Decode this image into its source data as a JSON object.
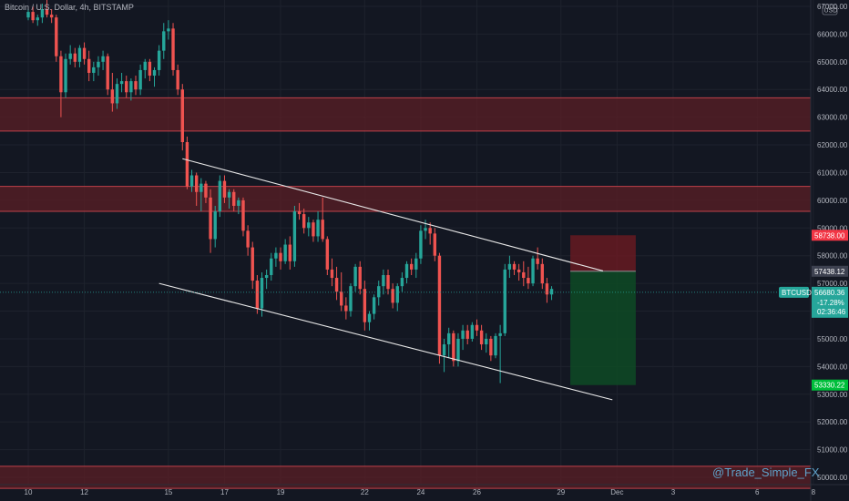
{
  "chart_data": {
    "type": "candlestick",
    "title": "Bitcoin / U.S. Dollar, 4h, BITSTAMP",
    "currency_badge": "USD",
    "symbol": "BTCUSD",
    "watermark": "@Trade_Simple_FX",
    "y_range": [
      49700,
      67300
    ],
    "y_ticks": [
      50000,
      51000,
      52000,
      53000,
      54000,
      55000,
      56000,
      57000,
      58000,
      59000,
      60000,
      61000,
      62000,
      63000,
      64000,
      65000,
      66000,
      67000
    ],
    "x_ticks": [
      {
        "label": "10",
        "x": 0
      },
      {
        "label": "12",
        "x": 12
      },
      {
        "label": "15",
        "x": 30
      },
      {
        "label": "17",
        "x": 42
      },
      {
        "label": "19",
        "x": 54
      },
      {
        "label": "22",
        "x": 72
      },
      {
        "label": "24",
        "x": 84
      },
      {
        "label": "26",
        "x": 96
      },
      {
        "label": "29",
        "x": 114
      },
      {
        "label": "Dec",
        "x": 126
      },
      {
        "label": "3",
        "x": 138
      },
      {
        "label": "6",
        "x": 156
      },
      {
        "label": "8",
        "x": 168
      }
    ],
    "candles": [
      [
        66600,
        66900,
        66500,
        66800
      ],
      [
        66800,
        67000,
        66400,
        66500
      ],
      [
        66500,
        66700,
        66300,
        66600
      ],
      [
        66600,
        67100,
        66400,
        66900
      ],
      [
        66900,
        67300,
        66600,
        66700
      ],
      [
        66700,
        66900,
        66400,
        66600
      ],
      [
        66600,
        66700,
        65000,
        65200
      ],
      [
        65200,
        65400,
        63000,
        63900
      ],
      [
        63900,
        65300,
        63700,
        65100
      ],
      [
        65100,
        65600,
        64900,
        65300
      ],
      [
        65300,
        65500,
        64800,
        65000
      ],
      [
        65000,
        65600,
        64800,
        65500
      ],
      [
        65500,
        65700,
        64900,
        65100
      ],
      [
        65100,
        65400,
        64300,
        64600
      ],
      [
        64600,
        65000,
        64300,
        64800
      ],
      [
        64800,
        65200,
        64500,
        65000
      ],
      [
        65000,
        65400,
        64700,
        65200
      ],
      [
        65200,
        65300,
        63800,
        64000
      ],
      [
        64000,
        64600,
        63200,
        63500
      ],
      [
        63500,
        64400,
        63300,
        64200
      ],
      [
        64200,
        64600,
        63900,
        64300
      ],
      [
        64300,
        64500,
        63700,
        63900
      ],
      [
        63900,
        64400,
        63600,
        64300
      ],
      [
        64300,
        64500,
        63800,
        64000
      ],
      [
        64000,
        64900,
        63800,
        64700
      ],
      [
        64700,
        65100,
        64400,
        65000
      ],
      [
        65000,
        65100,
        64300,
        64500
      ],
      [
        64500,
        64800,
        64100,
        64700
      ],
      [
        64700,
        65600,
        64500,
        65400
      ],
      [
        65400,
        66400,
        65100,
        66100
      ],
      [
        66100,
        66500,
        65800,
        66200
      ],
      [
        66200,
        66400,
        64500,
        64700
      ],
      [
        64700,
        64900,
        63800,
        64000
      ],
      [
        64000,
        64200,
        61800,
        62100
      ],
      [
        62100,
        62300,
        60400,
        60500
      ],
      [
        60500,
        61100,
        60300,
        60900
      ],
      [
        60900,
        61000,
        59800,
        60300
      ],
      [
        60300,
        60800,
        59600,
        60600
      ],
      [
        60600,
        60700,
        59900,
        60100
      ],
      [
        60100,
        60400,
        58100,
        58600
      ],
      [
        58600,
        59800,
        58300,
        59600
      ],
      [
        59600,
        60900,
        59400,
        60700
      ],
      [
        60700,
        60900,
        59900,
        60100
      ],
      [
        60100,
        60400,
        59700,
        60300
      ],
      [
        60300,
        60400,
        59600,
        59800
      ],
      [
        59800,
        60100,
        59500,
        60000
      ],
      [
        60000,
        60100,
        58700,
        58900
      ],
      [
        58900,
        59100,
        58000,
        58300
      ],
      [
        58300,
        58500,
        56800,
        57100
      ],
      [
        57100,
        57300,
        55900,
        56100
      ],
      [
        56100,
        57400,
        55800,
        57200
      ],
      [
        57200,
        57500,
        56800,
        57300
      ],
      [
        57300,
        58100,
        57100,
        57900
      ],
      [
        57900,
        58300,
        57600,
        58100
      ],
      [
        58100,
        58300,
        57500,
        57800
      ],
      [
        57800,
        58600,
        57700,
        58400
      ],
      [
        58400,
        58700,
        57500,
        57800
      ],
      [
        57800,
        59800,
        57600,
        59600
      ],
      [
        59600,
        59900,
        59300,
        59500
      ],
      [
        59500,
        59700,
        58800,
        59000
      ],
      [
        59000,
        59400,
        58700,
        59200
      ],
      [
        59200,
        59300,
        58500,
        58700
      ],
      [
        58700,
        59600,
        58500,
        59300
      ],
      [
        59300,
        60100,
        58500,
        58600
      ],
      [
        58600,
        58700,
        57300,
        57500
      ],
      [
        57500,
        57900,
        56900,
        57200
      ],
      [
        57200,
        57600,
        56400,
        56700
      ],
      [
        56700,
        57400,
        56000,
        56200
      ],
      [
        56200,
        56500,
        55700,
        56000
      ],
      [
        56000,
        57000,
        55800,
        56900
      ],
      [
        56900,
        57700,
        56700,
        57600
      ],
      [
        57600,
        57800,
        56600,
        56800
      ],
      [
        56800,
        57100,
        55300,
        55600
      ],
      [
        55600,
        56000,
        55300,
        55900
      ],
      [
        55900,
        56600,
        55700,
        56500
      ],
      [
        56500,
        57100,
        56200,
        56900
      ],
      [
        56900,
        57500,
        56600,
        57300
      ],
      [
        57300,
        57500,
        56600,
        56800
      ],
      [
        56800,
        57000,
        56100,
        56300
      ],
      [
        56300,
        57000,
        56000,
        56900
      ],
      [
        56900,
        57400,
        56700,
        57200
      ],
      [
        57200,
        57800,
        57000,
        57700
      ],
      [
        57700,
        57900,
        57300,
        57500
      ],
      [
        57500,
        58100,
        57200,
        57900
      ],
      [
        57900,
        59100,
        57700,
        58900
      ],
      [
        58900,
        59300,
        58600,
        59000
      ],
      [
        59000,
        59200,
        58400,
        58800
      ],
      [
        58800,
        59000,
        57800,
        58000
      ],
      [
        58000,
        58100,
        54100,
        54400
      ],
      [
        54400,
        55000,
        53800,
        54800
      ],
      [
        54800,
        55400,
        54300,
        55200
      ],
      [
        55200,
        55300,
        54000,
        54200
      ],
      [
        54200,
        55200,
        54000,
        55000
      ],
      [
        55000,
        55500,
        54600,
        55300
      ],
      [
        55300,
        55500,
        54800,
        55000
      ],
      [
        55000,
        55600,
        54900,
        55500
      ],
      [
        55500,
        55700,
        55100,
        55300
      ],
      [
        55300,
        55500,
        54600,
        54800
      ],
      [
        54800,
        55200,
        54500,
        55000
      ],
      [
        55000,
        55100,
        54200,
        54400
      ],
      [
        54400,
        55200,
        54300,
        55100
      ],
      [
        55100,
        55500,
        53400,
        55200
      ],
      [
        55200,
        57700,
        55100,
        57500
      ],
      [
        57500,
        58000,
        57200,
        57700
      ],
      [
        57700,
        57800,
        57300,
        57500
      ],
      [
        57500,
        57700,
        57100,
        57400
      ],
      [
        57400,
        57800,
        56900,
        57200
      ],
      [
        57200,
        57600,
        56800,
        57000
      ],
      [
        57000,
        58000,
        56900,
        57900
      ],
      [
        57900,
        58300,
        57500,
        57700
      ],
      [
        57700,
        57900,
        56800,
        57000
      ],
      [
        57000,
        57200,
        56300,
        56600
      ],
      [
        56600,
        56900,
        56400,
        56800
      ]
    ],
    "zones": [
      {
        "low": 62500,
        "high": 63700
      },
      {
        "low": 59600,
        "high": 60500
      },
      {
        "low": 49600,
        "high": 50400
      }
    ],
    "trendlines": [
      {
        "from": {
          "x": 33,
          "y": 61500
        },
        "to": {
          "x": 123,
          "y": 57450
        }
      },
      {
        "from": {
          "x": 28,
          "y": 57000
        },
        "to": {
          "x": 125,
          "y": 52800
        }
      }
    ],
    "position": {
      "x_start": 116,
      "x_end": 130,
      "stop": 58738,
      "entry": 57438.12,
      "target": 53330.22
    },
    "price_labels": [
      {
        "value": 58738,
        "text": "58738.00",
        "color": "#f23645"
      },
      {
        "value": 57438.12,
        "text": "57438.12",
        "color": "#3d4150"
      },
      {
        "value": 56680.36,
        "text": "56680.36",
        "sub": [
          "-17.28%",
          "02:36:46"
        ],
        "color": "#26a69a"
      },
      {
        "value": 53330.22,
        "text": "53330.22",
        "color": "#00bf3b"
      }
    ],
    "last_price": 56680.36,
    "colors": {
      "up": "#26a69a",
      "down": "#ef5350",
      "zone_fill": "#5b1f26",
      "zone_line": "#c0404a",
      "stop_fill": "#6b1a22",
      "target_fill": "#0e4a24",
      "trendline": "#e8e8e8",
      "background": "#131722",
      "grid": "#1e222d"
    }
  }
}
